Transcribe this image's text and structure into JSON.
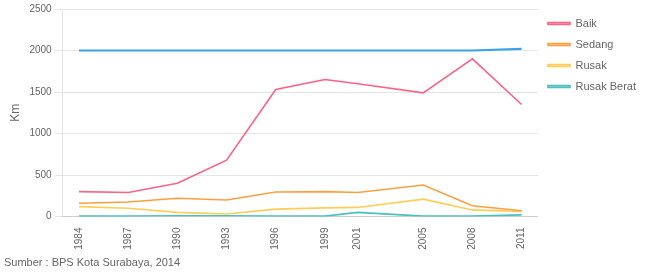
{
  "chart_data": {
    "type": "line",
    "x": [
      1984,
      1987,
      1990,
      1993,
      1996,
      1999,
      2001,
      2005,
      2008,
      2011
    ],
    "series": [
      {
        "values": [
          2000,
          2000,
          2000,
          2000,
          2000,
          2000,
          2000,
          2000,
          2000,
          2020
        ]
      },
      {
        "name": "Baik",
        "values": [
          300,
          290,
          400,
          680,
          1530,
          1650,
          1600,
          1490,
          1900,
          1350
        ]
      },
      {
        "name": "Sedang",
        "values": [
          160,
          175,
          220,
          200,
          295,
          300,
          290,
          380,
          130,
          70
        ]
      },
      {
        "name": "Rusak",
        "values": [
          120,
          100,
          50,
          30,
          90,
          105,
          110,
          210,
          80,
          60
        ]
      },
      {
        "name": "Rusak Berat",
        "values": [
          5,
          5,
          10,
          10,
          5,
          5,
          50,
          5,
          5,
          20
        ]
      }
    ],
    "ylabel": "Km",
    "xlim": [
      1983,
      2012
    ],
    "xticks": [
      1984,
      1987,
      1990,
      1993,
      1996,
      1999,
      2001,
      2005,
      2008,
      2011
    ],
    "ylim": [
      0,
      2500
    ],
    "yticks": [
      0,
      500,
      1000,
      1500,
      2000,
      2500
    ],
    "grid": true,
    "legend": "right",
    "annotation": "Sumber : BPS Kota Surabaya, 2014"
  }
}
